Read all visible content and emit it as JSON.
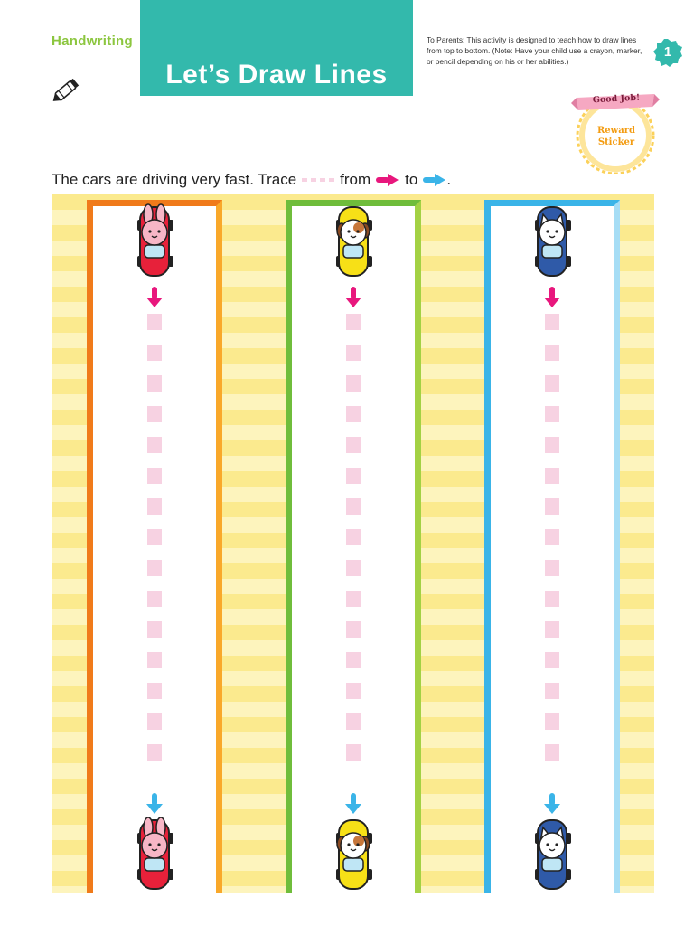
{
  "header": {
    "section": "Handwriting",
    "title": "Let’s Draw Lines",
    "parent_note": "To Parents: This activity is designed to teach how to draw lines from top to bottom. (Note: Have your child use a crayon, marker, or pencil depending on his or her abilities.)",
    "page_number": "1"
  },
  "sticker": {
    "ribbon": "Good Job!",
    "line1": "Reward",
    "line2": "Sticker"
  },
  "instruction": {
    "text_before": "The cars are driving very fast. Trace",
    "text_from": "from",
    "text_to": "to",
    "text_end": "."
  },
  "colors": {
    "title_bg": "#33b9ac",
    "section_green": "#8cc63f",
    "start_arrow": "#e8177d",
    "end_arrow": "#3ab4e8",
    "trace_dash": "#f7d2e2",
    "stripe_dark": "#fbea8e",
    "stripe_light": "#fdf4bd"
  },
  "lanes": [
    {
      "animal": "bunny",
      "car_color": "#e7213a",
      "border_left": "#f07a1a",
      "border_right": "#f9a82a"
    },
    {
      "animal": "puppy",
      "car_color": "#f7e017",
      "border_left": "#6fbd3b",
      "border_right": "#a3d144"
    },
    {
      "animal": "kitten",
      "car_color": "#2f5aa8",
      "border_left": "#3ab4e8",
      "border_right": "#a6ddf5"
    }
  ]
}
